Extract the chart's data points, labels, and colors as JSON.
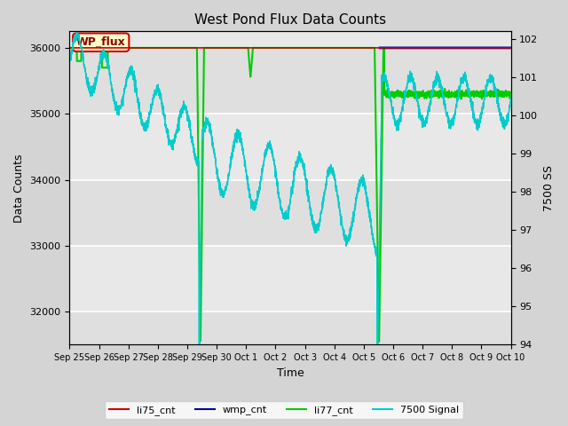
{
  "title": "West Pond Flux Data Counts",
  "xlabel": "Time",
  "ylabel_left": "Data Counts",
  "ylabel_right": "7500 SS",
  "annotation_text": "WP_flux",
  "annotation_bg": "#ffffcc",
  "annotation_border": "#cc0000",
  "annotation_text_color": "#8b0000",
  "ylim_left": [
    31500,
    36250
  ],
  "ylim_right": [
    94.0,
    102.2
  ],
  "colors": {
    "li75_cnt": "#cc0000",
    "wmp_cnt": "#000099",
    "li77_cnt": "#00cc00",
    "signal_7500": "#00cccc"
  },
  "x_tick_labels": [
    "Sep 25",
    "Sep 26",
    "Sep 27",
    "Sep 28",
    "Sep 29",
    "Sep 30",
    "Oct 1",
    "Oct 2",
    "Oct 3",
    "Oct 4",
    "Oct 5",
    "Oct 6",
    "Oct 7",
    "Oct 8",
    "Oct 9",
    "Oct 10"
  ],
  "x_tick_positions": [
    0,
    1,
    2,
    3,
    4,
    5,
    6,
    7,
    8,
    9,
    10,
    11,
    12,
    13,
    14,
    15
  ],
  "legend_labels": [
    "li75_cnt",
    "wmp_cnt",
    "li77_cnt",
    "7500 Signal"
  ],
  "legend_colors": [
    "#cc0000",
    "#000099",
    "#00cc00",
    "#00cccc"
  ],
  "plot_bg": "#e8e8e8",
  "grid_color": "#ffffff",
  "fig_bg": "#d4d4d4"
}
